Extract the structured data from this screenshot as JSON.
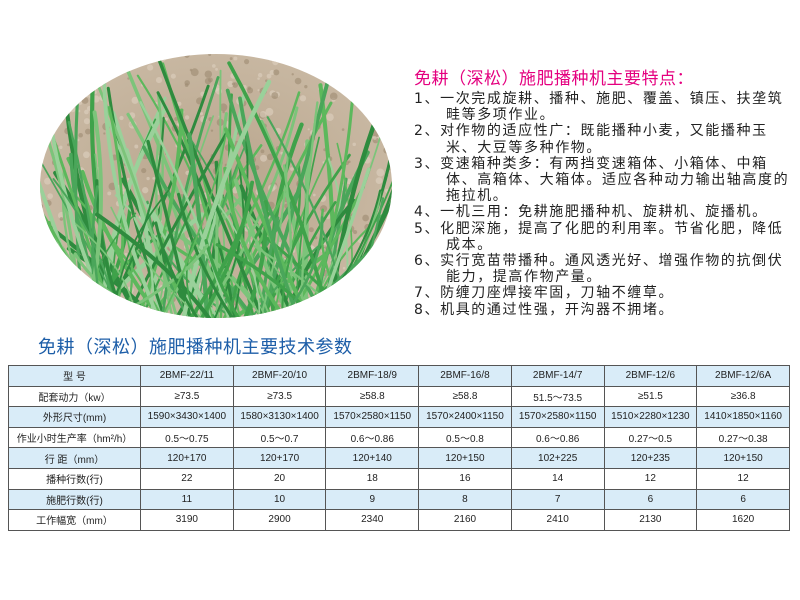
{
  "features": {
    "title": "免耕（深松）施肥播种机主要特点：",
    "items": [
      "1、一次完成旋耕、播种、施肥、覆盖、镇压、扶垄筑畦等多项作业。",
      "2、对作物的适应性广：既能播种小麦，又能播种玉米、大豆等多种作物。",
      "3、变速箱种类多：有两挡变速箱体、小箱体、中箱体、高箱体、大箱体。适应各种动力输出轴高度的拖拉机。",
      "4、一机三用：免耕施肥播种机、旋耕机、旋播机。",
      "5、化肥深施，提高了化肥的利用率。节省化肥，降低成本。",
      "6、实行宽苗带播种。通风透光好、增强作物的抗倒伏能力，提高作物产量。",
      "7、防缠刀座焊接牢固，刀轴不缠草。",
      "8、机具的通过性强，开沟器不拥堵。"
    ]
  },
  "specs": {
    "title": "免耕（深松）施肥播种机主要技术参数",
    "rows": [
      {
        "label": "型 号",
        "values": [
          "2BMF-22/11",
          "2BMF-20/10",
          "2BMF-18/9",
          "2BMF-16/8",
          "2BMF-14/7",
          "2BMF-12/6",
          "2BMF-12/6A"
        ]
      },
      {
        "label": "配套动力（kw）",
        "values": [
          "≥73.5",
          "≥73.5",
          "≥58.8",
          "≥58.8",
          "51.5～73.5",
          "≥51.5",
          "≥36.8"
        ]
      },
      {
        "label": "外形尺寸(mm)",
        "values": [
          "1590×3430×1400",
          "1580×3130×1400",
          "1570×2580×1150",
          "1570×2400×1150",
          "1570×2580×1150",
          "1510×2280×1230",
          "1410×1850×1160"
        ]
      },
      {
        "label": "作业小时生产率（hm²/h）",
        "values": [
          "0.5～0.75",
          "0.5～0.7",
          "0.6～0.86",
          "0.5～0.8",
          "0.6～0.86",
          "0.27～0.5",
          "0.27～0.38"
        ]
      },
      {
        "label": "行 距（mm）",
        "values": [
          "120+170",
          "120+170",
          "120+140",
          "120+150",
          "102+225",
          "120+235",
          "120+150"
        ]
      },
      {
        "label": "播种行数(行)",
        "values": [
          "22",
          "20",
          "18",
          "16",
          "14",
          "12",
          "12"
        ]
      },
      {
        "label": "施肥行数(行)",
        "values": [
          "11",
          "10",
          "9",
          "8",
          "7",
          "6",
          "6"
        ]
      },
      {
        "label": "工作幅宽（mm）",
        "values": [
          "3190",
          "2900",
          "2340",
          "2160",
          "2410",
          "2130",
          "1620"
        ]
      }
    ]
  },
  "colors": {
    "feature_title": "#e4007f",
    "spec_title": "#1d5ea8",
    "row_highlight": "#d9ecf8"
  }
}
